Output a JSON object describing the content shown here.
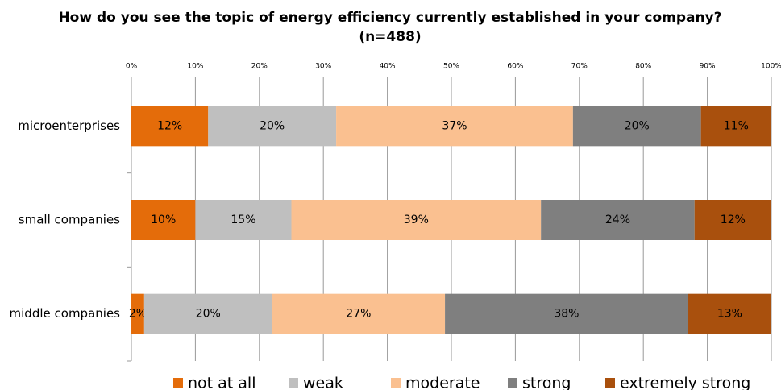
{
  "chart_data": {
    "type": "stacked-bar-horizontal",
    "title": "How do you see the topic of energy efficiency currently established in your company?",
    "subtitle": "(n=488)",
    "categories": [
      "microenterprises",
      "small companies",
      "middle companies"
    ],
    "series": [
      {
        "name": "not at all",
        "color": "#e46c0a",
        "values": [
          12,
          10,
          2
        ],
        "value_labels": [
          "12%",
          "10%",
          "2%"
        ]
      },
      {
        "name": "weak",
        "color": "#bfbfbf",
        "values": [
          20,
          15,
          20
        ],
        "value_labels": [
          "20%",
          "15%",
          "20%"
        ]
      },
      {
        "name": "moderate",
        "color": "#fac090",
        "values": [
          37,
          39,
          27
        ],
        "value_labels": [
          "37%",
          "39%",
          "27%"
        ]
      },
      {
        "name": "strong",
        "color": "#7f7f7f",
        "values": [
          20,
          24,
          38
        ],
        "value_labels": [
          "20%",
          "24%",
          "38%"
        ]
      },
      {
        "name": "extremely strong",
        "color": "#a9500d",
        "values": [
          11,
          12,
          13
        ],
        "value_labels": [
          "11%",
          "12%",
          "13%"
        ]
      }
    ],
    "xlim": [
      0,
      100
    ],
    "xticks": [
      {
        "value": 0,
        "label": "0%"
      },
      {
        "value": 10,
        "label": "10%"
      },
      {
        "value": 20,
        "label": "20%"
      },
      {
        "value": 30,
        "label": "30%"
      },
      {
        "value": 40,
        "label": "40%"
      },
      {
        "value": 50,
        "label": "50%"
      },
      {
        "value": 60,
        "label": "60%"
      },
      {
        "value": 70,
        "label": "70%"
      },
      {
        "value": 80,
        "label": "80%"
      },
      {
        "value": 90,
        "label": "90%"
      },
      {
        "value": 100,
        "label": "100%"
      }
    ],
    "grid": true,
    "legend": "bottom"
  }
}
